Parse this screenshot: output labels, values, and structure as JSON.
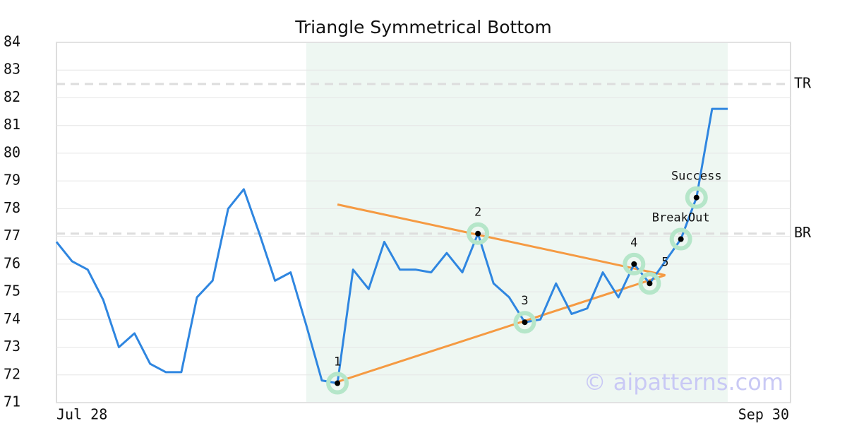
{
  "chart_data": {
    "type": "line",
    "title": "Triangle Symmetrical Bottom",
    "categories": [
      "Jul 28",
      null,
      null,
      null,
      null,
      null,
      null,
      null,
      null,
      null,
      null,
      null,
      null,
      null,
      null,
      null,
      null,
      null,
      null,
      null,
      null,
      null,
      null,
      null,
      null,
      null,
      null,
      null,
      null,
      null,
      null,
      null,
      null,
      null,
      null,
      null,
      null,
      null,
      null,
      null,
      null,
      null,
      null,
      "Sep 30"
    ],
    "series": [
      {
        "color": "#2f86e0",
        "values": [
          76.8,
          76.1,
          75.8,
          74.7,
          73.0,
          73.5,
          72.4,
          72.1,
          72.1,
          74.8,
          75.4,
          78.0,
          78.7,
          77.1,
          75.4,
          75.7,
          73.8,
          71.8,
          71.7,
          75.8,
          75.1,
          76.8,
          75.8,
          75.8,
          75.7,
          76.4,
          75.7,
          77.1,
          75.3,
          74.8,
          73.9,
          74.0,
          75.3,
          74.2,
          74.4,
          75.7,
          74.8,
          76.0,
          75.3,
          76.1,
          76.9,
          78.4,
          81.6,
          81.6
        ]
      }
    ],
    "ylim": [
      71,
      84
    ],
    "yticks": [
      71,
      72,
      73,
      74,
      75,
      76,
      77,
      78,
      79,
      80,
      81,
      82,
      83,
      84
    ],
    "grid": true,
    "pattern_range": [
      16,
      43
    ],
    "trendlines": [
      {
        "color": "#f59a42",
        "x": [
          18,
          39
        ],
        "values": [
          78.15,
          75.6
        ]
      },
      {
        "color": "#f59a42",
        "x": [
          18,
          39
        ],
        "values": [
          71.75,
          75.6
        ]
      }
    ],
    "hlines": [
      {
        "label": "TR",
        "value": 82.5
      },
      {
        "label": "BR",
        "value": 77.1
      }
    ],
    "annotations": [
      {
        "label": "1",
        "index": 18
      },
      {
        "label": "2",
        "index": 27
      },
      {
        "label": "3",
        "index": 30
      },
      {
        "label": "4",
        "index": 37
      },
      {
        "label": "5",
        "index": 38
      },
      {
        "label": "BreakOut",
        "index": 40
      },
      {
        "label": "Success",
        "index": 41
      }
    ],
    "watermark": "© aipatterns.com"
  }
}
